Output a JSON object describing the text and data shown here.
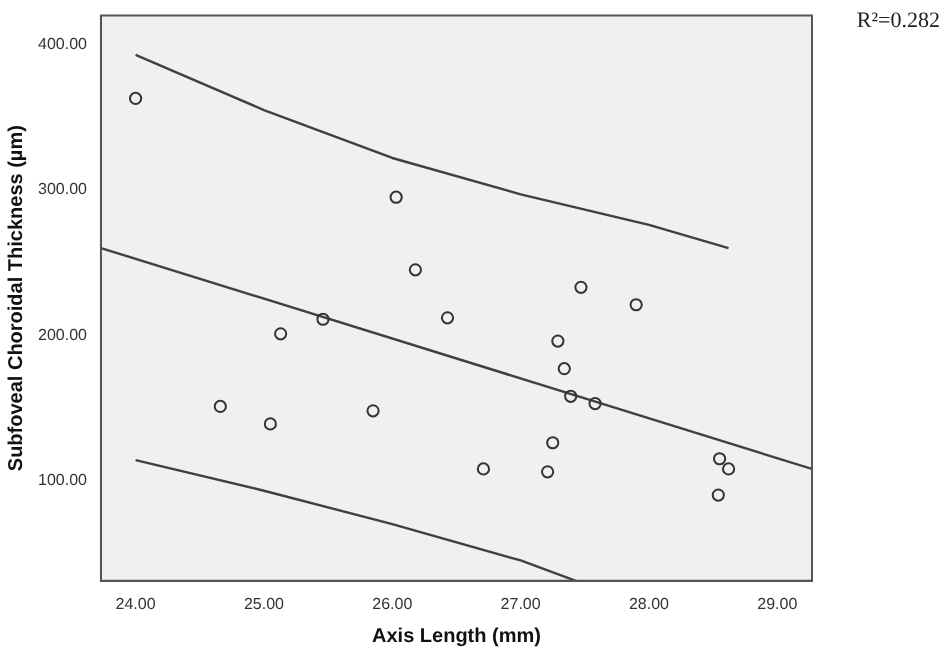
{
  "chart_data": {
    "type": "scatter",
    "xlabel": "Axis Length (mm)",
    "ylabel": "Subfoveal Choroidal Thickness (µm)",
    "annotations": [
      "R²=0.282"
    ],
    "xlim": [
      23.73,
      29.27
    ],
    "ylim": [
      31,
      420
    ],
    "xticks": [
      {
        "value": 24,
        "label": "24.00"
      },
      {
        "value": 25,
        "label": "25.00"
      },
      {
        "value": 26,
        "label": "26.00"
      },
      {
        "value": 27,
        "label": "27.00"
      },
      {
        "value": 28,
        "label": "28.00"
      },
      {
        "value": 29,
        "label": "29.00"
      }
    ],
    "yticks": [
      {
        "value": 100,
        "label": "100.00"
      },
      {
        "value": 200,
        "label": "200.00"
      },
      {
        "value": 300,
        "label": "300.00"
      },
      {
        "value": 400,
        "label": "400.00"
      }
    ],
    "grid": false,
    "legend": false,
    "marker": "circle",
    "series": [
      {
        "color": "#333333",
        "x": [
          24.0,
          24.66,
          25.05,
          25.13,
          25.46,
          25.85,
          26.03,
          26.18,
          26.43,
          26.71,
          27.21,
          27.25,
          27.29,
          27.34,
          27.39,
          27.47,
          27.58,
          27.9,
          28.55,
          28.62,
          28.54
        ],
        "values": [
          363,
          151,
          139,
          201,
          211,
          148,
          295,
          245,
          212,
          108,
          106,
          126,
          196,
          177,
          158,
          233,
          153,
          221,
          115,
          108,
          90
        ]
      },
      {
        "type": "line",
        "color": "#404040",
        "marker": "none",
        "x": [
          23.73,
          29.27
        ],
        "values": [
          260,
          108
        ]
      },
      {
        "type": "line",
        "color": "#404040",
        "marker": "none",
        "x": [
          24.0,
          25.0,
          26.0,
          27.0,
          28.0,
          28.62
        ],
        "values": [
          393,
          355,
          322,
          297,
          276,
          260
        ]
      },
      {
        "type": "line",
        "color": "#404040",
        "marker": "none",
        "x": [
          24.0,
          25.0,
          26.0,
          27.0,
          27.43
        ],
        "values": [
          114,
          93,
          70,
          45,
          31
        ]
      }
    ]
  }
}
